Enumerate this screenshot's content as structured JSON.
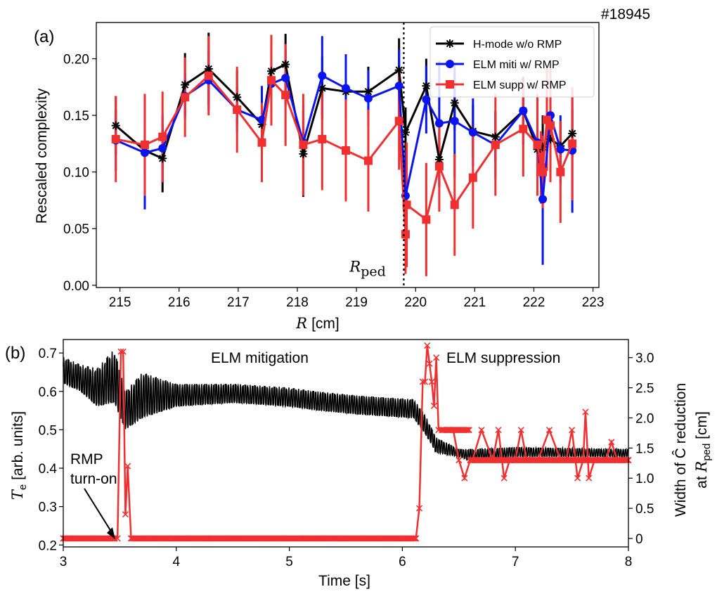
{
  "figure": {
    "shot_label": "#18945",
    "panel_a": "(a)",
    "panel_b": "(b)"
  },
  "chart_data": [
    {
      "type": "line",
      "panel": "(a)",
      "title": "",
      "xlabel_italic": "R",
      "xlabel_unit": "[cm]",
      "ylabel": "Rescaled complexity",
      "xlim": [
        214.6,
        223.1
      ],
      "ylim": [
        -0.002,
        0.232
      ],
      "xticks": [
        "215",
        "216",
        "217",
        "218",
        "219",
        "220",
        "221",
        "222",
        "223"
      ],
      "xtick_values": [
        215,
        216,
        217,
        218,
        219,
        220,
        221,
        222,
        223
      ],
      "yticks": [
        "0.00",
        "0.05",
        "0.10",
        "0.15",
        "0.20"
      ],
      "ytick_values": [
        0,
        0.05,
        0.1,
        0.15,
        0.2
      ],
      "vline": {
        "x": 219.8,
        "label_main": "R",
        "label_sub": "ped"
      },
      "legend_position": "top-right",
      "series": [
        {
          "name": "H-mode w/o RMP",
          "color": "#000000",
          "marker": "asterisk",
          "x": [
            214.93,
            215.42,
            215.72,
            216.1,
            216.5,
            216.98,
            217.4,
            217.56,
            217.8,
            218.1,
            218.42,
            218.82,
            219.2,
            219.72,
            219.83,
            220.18,
            220.4,
            220.66,
            220.97,
            221.35,
            221.82,
            222.06,
            222.15,
            222.28,
            222.45,
            222.65
          ],
          "y": [
            0.141,
            0.119,
            0.112,
            0.177,
            0.191,
            0.166,
            0.142,
            0.189,
            0.195,
            0.116,
            0.174,
            0.171,
            0.171,
            0.19,
            0.135,
            0.176,
            0.111,
            0.161,
            0.136,
            0.131,
            0.154,
            0.12,
            0.122,
            0.129,
            0.123,
            0.134
          ],
          "err": [
            0.026,
            0.02,
            0.03,
            0.028,
            0.032,
            0.024,
            0.025,
            0.032,
            0.027,
            0.038,
            0.028,
            0.024,
            0.022,
            0.028,
            0.022,
            0.024,
            0.024,
            0.024,
            0.023,
            0.022,
            0.022,
            0.021,
            0.028,
            0.028,
            0.021,
            0.021
          ]
        },
        {
          "name": "ELM miti w/ RMP",
          "color": "#0a14f0",
          "marker": "circle",
          "x": [
            214.93,
            215.42,
            215.72,
            216.1,
            216.5,
            216.98,
            217.4,
            217.56,
            217.8,
            218.1,
            218.42,
            218.82,
            219.2,
            219.72,
            219.83,
            220.18,
            220.4,
            220.66,
            220.97,
            221.35,
            221.82,
            222.06,
            222.15,
            222.28,
            222.45,
            222.65
          ],
          "y": [
            0.128,
            0.117,
            0.121,
            0.167,
            0.181,
            0.155,
            0.146,
            0.178,
            0.183,
            0.126,
            0.185,
            0.174,
            0.165,
            0.176,
            0.079,
            0.164,
            0.143,
            0.145,
            0.135,
            0.124,
            0.154,
            0.126,
            0.076,
            0.15,
            0.12,
            0.119
          ],
          "err": [
            0.027,
            0.05,
            0.03,
            0.02,
            0.027,
            0.02,
            0.03,
            0.03,
            0.025,
            0.033,
            0.035,
            0.03,
            0.025,
            0.032,
            0.04,
            0.03,
            0.055,
            0.05,
            0.03,
            0.03,
            0.03,
            0.03,
            0.058,
            0.03,
            0.03,
            0.055
          ]
        },
        {
          "name": "ELM supp w/ RMP",
          "color": "#f03030",
          "marker": "square",
          "x": [
            214.93,
            215.42,
            215.72,
            216.1,
            216.5,
            216.98,
            217.4,
            217.56,
            217.8,
            218.1,
            218.42,
            218.82,
            219.2,
            219.72,
            219.83,
            219.85,
            220.18,
            220.4,
            220.66,
            220.97,
            221.35,
            221.82,
            222.06,
            222.12,
            222.15,
            222.22,
            222.28,
            222.45,
            222.65
          ],
          "y": [
            0.129,
            0.124,
            0.131,
            0.166,
            0.185,
            0.155,
            0.126,
            0.181,
            0.168,
            0.124,
            0.129,
            0.119,
            0.11,
            0.145,
            0.045,
            0.071,
            0.058,
            0.105,
            0.071,
            0.095,
            0.124,
            0.138,
            0.124,
            0.104,
            0.1,
            0.146,
            0.141,
            0.1,
            0.125
          ],
          "err": [
            0.038,
            0.045,
            0.04,
            0.035,
            0.035,
            0.038,
            0.035,
            0.04,
            0.045,
            0.045,
            0.045,
            0.045,
            0.045,
            0.043,
            0.035,
            0.055,
            0.05,
            0.04,
            0.045,
            0.045,
            0.045,
            0.042,
            0.045,
            0.032,
            0.032,
            0.045,
            0.05,
            0.045,
            0.05
          ]
        }
      ]
    },
    {
      "type": "line",
      "panel": "(b)",
      "xlabel": "Time [s]",
      "ylabel_italic": "T",
      "ylabel_sub": "e",
      "ylabel_unit": " [arb. units]",
      "ylabel_right_line1": "Width of Ĉ reduction",
      "ylabel_right_line2_prefix": "at ",
      "ylabel_right_line2_italic": "R",
      "ylabel_right_line2_sub": "ped",
      "ylabel_right_line2_unit": " [cm]",
      "xlim": [
        3.0,
        8.0
      ],
      "ylim_left": [
        0.195,
        0.735
      ],
      "ylim_right": [
        -0.14,
        3.3
      ],
      "xticks": [
        "3",
        "4",
        "5",
        "6",
        "7",
        "8"
      ],
      "xtick_values": [
        3,
        4,
        5,
        6,
        7,
        8
      ],
      "yticks_left": [
        "0.2",
        "0.3",
        "0.4",
        "0.5",
        "0.6",
        "0.7"
      ],
      "ytick_left_values": [
        0.2,
        0.3,
        0.4,
        0.5,
        0.6,
        0.7
      ],
      "yticks_right": [
        "0",
        "0.5",
        "1.0",
        "1.5",
        "2.0",
        "2.5",
        "3.0"
      ],
      "ytick_right_values": [
        0,
        0.5,
        1.0,
        1.5,
        2.0,
        2.5,
        3.0
      ],
      "annotations": {
        "mitigation": "ELM mitigation",
        "suppression": "ELM suppression",
        "rmp_line1": "RMP",
        "rmp_line2": "turn-on",
        "rmp_arrow_target": [
          3.46,
          0.215
        ]
      },
      "series": [
        {
          "name": "Te",
          "axis": "left",
          "color": "#000000",
          "envelope": [
            {
              "t": 3.0,
              "lo": 0.62,
              "hi": 0.69
            },
            {
              "t": 3.15,
              "lo": 0.6,
              "hi": 0.67
            },
            {
              "t": 3.3,
              "lo": 0.56,
              "hi": 0.66
            },
            {
              "t": 3.45,
              "lo": 0.57,
              "hi": 0.71
            },
            {
              "t": 3.55,
              "lo": 0.5,
              "hi": 0.6
            },
            {
              "t": 3.7,
              "lo": 0.53,
              "hi": 0.65
            },
            {
              "t": 4.0,
              "lo": 0.56,
              "hi": 0.62
            },
            {
              "t": 4.5,
              "lo": 0.57,
              "hi": 0.62
            },
            {
              "t": 5.0,
              "lo": 0.56,
              "hi": 0.61
            },
            {
              "t": 5.25,
              "lo": 0.55,
              "hi": 0.6
            },
            {
              "t": 5.6,
              "lo": 0.54,
              "hi": 0.59
            },
            {
              "t": 6.1,
              "lo": 0.53,
              "hi": 0.58
            },
            {
              "t": 6.2,
              "lo": 0.49,
              "hi": 0.54
            },
            {
              "t": 6.3,
              "lo": 0.44,
              "hi": 0.48
            },
            {
              "t": 6.5,
              "lo": 0.43,
              "hi": 0.45
            },
            {
              "t": 6.6,
              "lo": 0.42,
              "hi": 0.45
            },
            {
              "t": 7.0,
              "lo": 0.43,
              "hi": 0.455
            },
            {
              "t": 8.0,
              "lo": 0.43,
              "hi": 0.45
            }
          ]
        },
        {
          "name": "Width of C reduction",
          "axis": "right",
          "color": "#f03030",
          "marker": "x",
          "t": [
            3.0,
            3.45,
            3.48,
            3.51,
            3.53,
            3.55,
            3.57,
            3.6,
            6.12,
            6.15,
            6.18,
            6.2,
            6.22,
            6.24,
            6.26,
            6.28,
            6.3,
            6.32,
            6.35,
            6.4,
            6.45,
            6.5,
            6.55,
            6.6,
            6.62,
            6.7,
            6.8,
            6.85,
            6.9,
            6.95,
            7.0,
            7.05,
            7.1,
            7.2,
            7.3,
            7.4,
            7.45,
            7.5,
            7.55,
            7.6,
            7.62,
            7.65,
            7.7,
            7.75,
            7.8,
            7.85,
            7.9,
            8.0
          ],
          "y": [
            0,
            0,
            0,
            3.1,
            3.1,
            0.4,
            1.2,
            0,
            0,
            0.5,
            2.6,
            2.6,
            3.2,
            2.9,
            2.6,
            2.2,
            3.0,
            1.8,
            1.8,
            1.8,
            1.8,
            1.3,
            1.0,
            1.3,
            1.3,
            1.8,
            1.3,
            1.8,
            1.0,
            1.3,
            1.3,
            1.8,
            1.3,
            1.3,
            1.8,
            1.3,
            1.3,
            1.8,
            1.0,
            1.3,
            2.1,
            1.0,
            1.3,
            1.3,
            1.3,
            1.6,
            1.3,
            1.3
          ]
        }
      ]
    }
  ]
}
